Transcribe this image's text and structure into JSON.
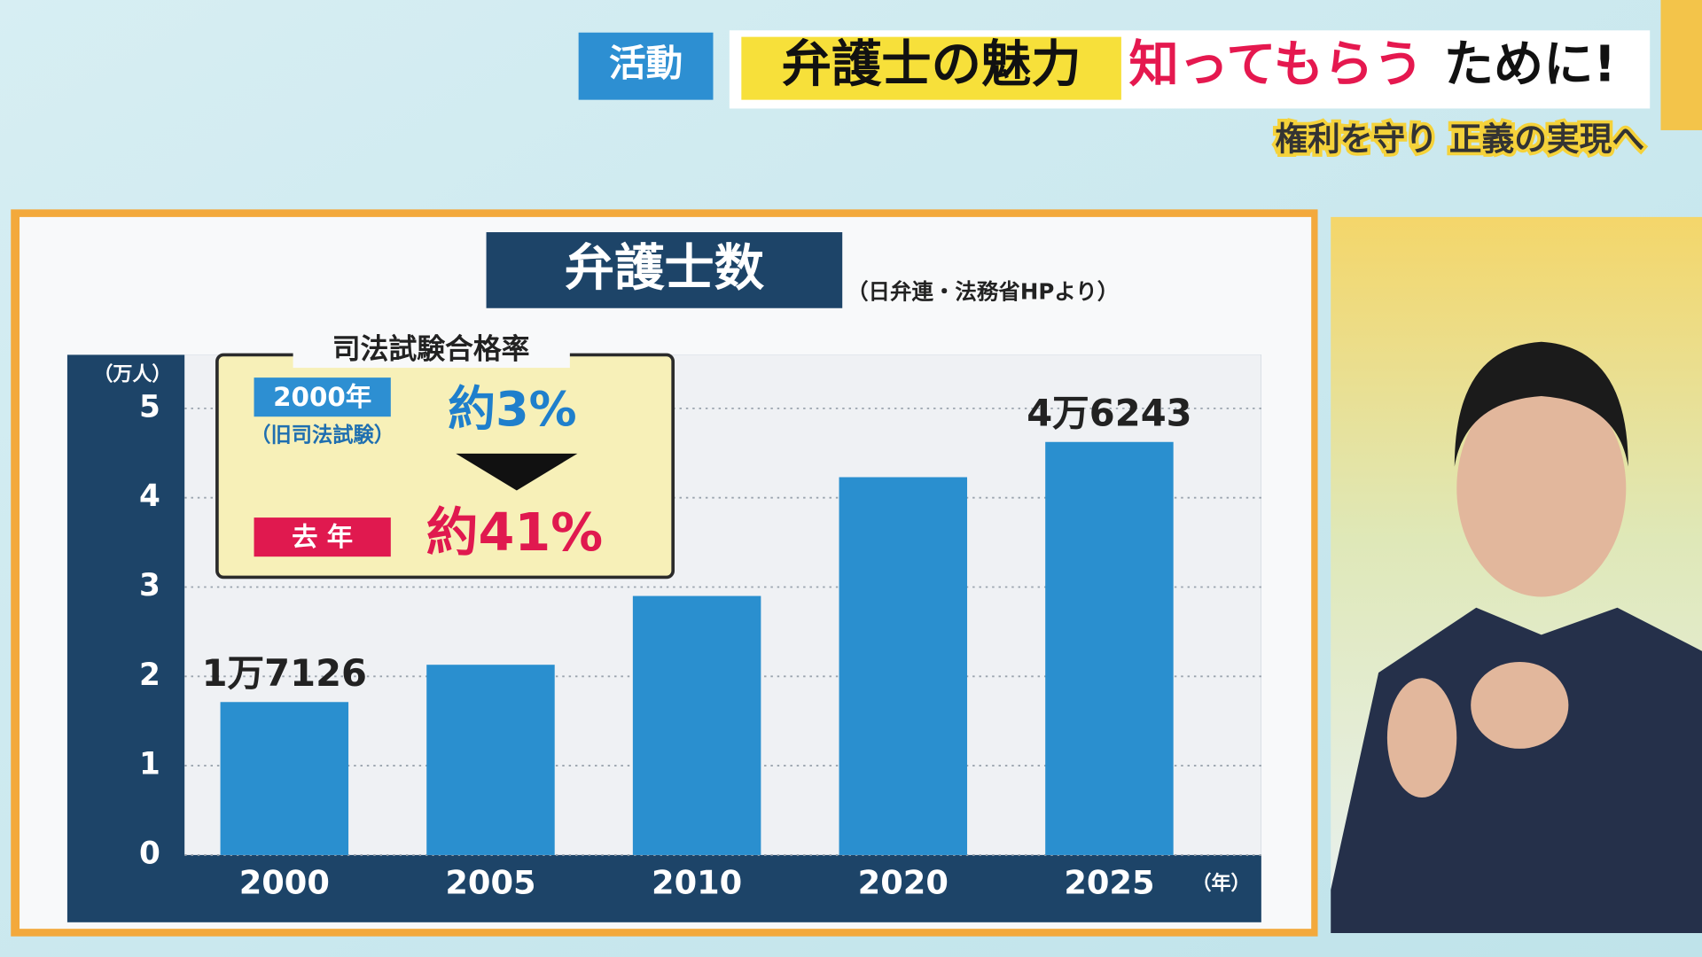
{
  "header": {
    "tag": "活動",
    "title_highlight": "弁護士の魅力",
    "title_red": "知ってもらう",
    "title_rest": "ために!",
    "subtitle": "権利を守り 正義の実現へ"
  },
  "chart_data": {
    "type": "bar",
    "title": "弁護士数",
    "source": "（日弁連・法務省HPより）",
    "y_unit": "（万人）",
    "x_unit": "（年）",
    "categories": [
      "2000",
      "2005",
      "2010",
      "2020",
      "2025"
    ],
    "values": [
      1.7126,
      2.13,
      2.9,
      4.23,
      4.6243
    ],
    "value_labels": [
      "1万7126",
      null,
      null,
      null,
      "4万6243"
    ],
    "color": "#2a8fcf",
    "ylim": [
      0,
      5.6
    ],
    "yticks": [
      0,
      1,
      2,
      3,
      4,
      5
    ],
    "grid": true,
    "inset": {
      "title": "司法試験合格率",
      "label_a": "2000年",
      "note_a": "（旧司法試験）",
      "value_a": "約3%",
      "label_b": "去 年",
      "value_b": "約41%"
    }
  }
}
